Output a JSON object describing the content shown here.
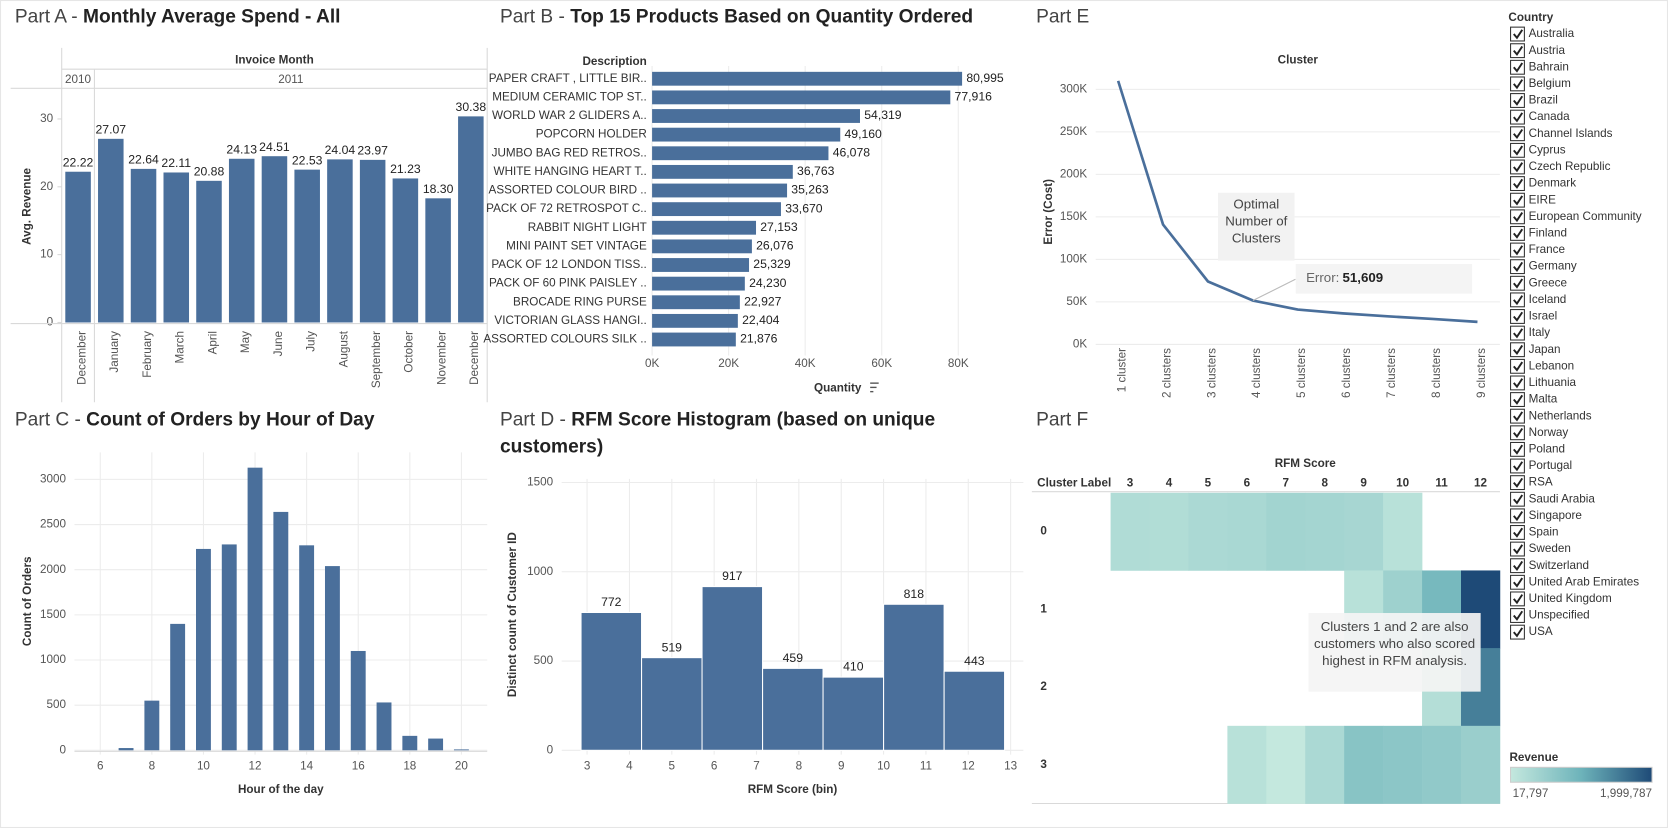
{
  "chart_data": [
    {
      "type": "bar",
      "title_prefix": "Part A -",
      "title": "Monthly Average Spend - All",
      "x_header": "Invoice Month",
      "x_groups": [
        {
          "label": "2010",
          "span": 1
        },
        {
          "label": "2011",
          "span": 12
        }
      ],
      "categories": [
        "December",
        "January",
        "February",
        "March",
        "April",
        "May",
        "June",
        "July",
        "August",
        "September",
        "October",
        "November",
        "December"
      ],
      "values": [
        22.22,
        27.07,
        22.64,
        22.11,
        20.88,
        24.13,
        24.51,
        22.53,
        24.04,
        23.97,
        21.23,
        18.3,
        30.38
      ],
      "value_labels": [
        "22.22",
        "27.07",
        "22.64",
        "22.11",
        "20.88",
        "24.13",
        "24.51",
        "22.53",
        "24.04",
        "23.97",
        "21.23",
        "18.30",
        "30.38"
      ],
      "color": "#4a6f9b",
      "y_label": "Avg. Revenue",
      "ylim": [
        0,
        34.2
      ],
      "yticks": [
        0,
        10,
        20,
        30
      ],
      "grid": false
    },
    {
      "type": "bar",
      "horizontal": true,
      "title_prefix": "Part B -",
      "title": "Top 15 Products Based on Quantity Ordered",
      "y_header": "Description",
      "categories": [
        "PAPER CRAFT , LITTLE BIR..",
        "MEDIUM CERAMIC TOP ST..",
        "WORLD WAR 2 GLIDERS A..",
        "POPCORN HOLDER",
        "JUMBO BAG RED RETROS..",
        "WHITE HANGING HEART T..",
        "ASSORTED COLOUR BIRD ..",
        "PACK OF 72 RETROSPOT C..",
        "RABBIT NIGHT LIGHT",
        "MINI PAINT SET VINTAGE",
        "PACK OF 12 LONDON TISS..",
        "PACK OF 60 PINK PAISLEY ..",
        "BROCADE RING PURSE",
        "VICTORIAN GLASS HANGI..",
        "ASSORTED COLOURS SILK .."
      ],
      "values": [
        80995,
        77916,
        54319,
        49160,
        46078,
        36763,
        35263,
        33670,
        27153,
        26076,
        25329,
        24230,
        22927,
        22404,
        21876
      ],
      "value_labels": [
        "80,995",
        "77,916",
        "54,319",
        "49,160",
        "46,078",
        "36,763",
        "35,263",
        "33,670",
        "27,153",
        "26,076",
        "25,329",
        "24,230",
        "22,927",
        "22,404",
        "21,876"
      ],
      "color": "#4a6f9b",
      "x_label": "Quantity",
      "xlim": [
        0,
        97000
      ],
      "xticks": [
        {
          "value": 0,
          "label": "0K"
        },
        {
          "value": 20000,
          "label": "20K"
        },
        {
          "value": 40000,
          "label": "40K"
        },
        {
          "value": 60000,
          "label": "60K"
        },
        {
          "value": 80000,
          "label": "80K"
        }
      ],
      "grid": true
    },
    {
      "type": "bar",
      "title_prefix": "Part C -",
      "title": "Count of Orders by Hour of Day",
      "x": [
        7,
        8,
        9,
        10,
        11,
        12,
        13,
        14,
        15,
        16,
        17,
        18,
        19,
        20
      ],
      "values": [
        25,
        550,
        1400,
        2230,
        2280,
        3130,
        2640,
        2270,
        2040,
        1100,
        530,
        160,
        130,
        10
      ],
      "color": "#4a6f9b",
      "x_label": "Hour of the day",
      "y_label": "Count of Orders",
      "xlim": [
        5,
        21
      ],
      "xticks": [
        6,
        8,
        10,
        12,
        14,
        16,
        18,
        20
      ],
      "ylim": [
        0,
        3300
      ],
      "yticks": [
        0,
        500,
        1000,
        1500,
        2000,
        2500,
        3000
      ],
      "grid": true
    },
    {
      "type": "histogram",
      "title_prefix": "Part D -",
      "title": "RFM Score Histogram (based on unique customers)",
      "bins": [
        2.857,
        4.286,
        5.714,
        7.143,
        8.571,
        10,
        11.429,
        12.857
      ],
      "values": [
        772,
        519,
        917,
        459,
        410,
        818,
        443
      ],
      "color": "#4a6f9b",
      "x_label": "RFM Score (bin)",
      "y_label": "Distinct count of Customer ID",
      "xlim": [
        2.4,
        13.3
      ],
      "xticks": [
        3,
        4,
        5,
        6,
        7,
        8,
        9,
        10,
        11,
        12,
        13
      ],
      "ylim": [
        0,
        1520
      ],
      "yticks": [
        0,
        500,
        1000,
        1500
      ],
      "grid": true
    },
    {
      "type": "line",
      "title_prefix": "Part E",
      "x_header": "Cluster",
      "categories": [
        "1 cluster",
        "2 clusters",
        "3 clusters",
        "4 clusters",
        "5 clusters",
        "6 clusters",
        "7 clusters",
        "8 clusters",
        "9 clusters"
      ],
      "values": [
        310000,
        141000,
        74000,
        51609,
        41000,
        36500,
        33000,
        30000,
        26500
      ],
      "value_labels": [
        null,
        null,
        null,
        "51,609",
        null,
        null,
        null,
        null,
        null
      ],
      "tooltip_label": "Error:",
      "annotation": "Optimal Number of Clusters",
      "color": "#4a6f9b",
      "y_label": "Error (Cost)",
      "ylim": [
        -8000,
        320000
      ],
      "yticks": [
        {
          "value": 0,
          "label": "0K"
        },
        {
          "value": 50000,
          "label": "50K"
        },
        {
          "value": 100000,
          "label": "100K"
        },
        {
          "value": 150000,
          "label": "150K"
        },
        {
          "value": 200000,
          "label": "200K"
        },
        {
          "value": 250000,
          "label": "250K"
        },
        {
          "value": 300000,
          "label": "300K"
        }
      ],
      "grid": true
    },
    {
      "type": "heatmap",
      "title_prefix": "Part F",
      "x_header": "RFM Score",
      "y_header": "Cluster Label",
      "columns": [
        3,
        4,
        5,
        6,
        7,
        8,
        9,
        10,
        11,
        12
      ],
      "rows": [
        0,
        1,
        2,
        3
      ],
      "values": [
        [
          250000,
          230000,
          300000,
          320000,
          400000,
          380000,
          350000,
          150000,
          null,
          null
        ],
        [
          null,
          null,
          null,
          null,
          null,
          null,
          150000,
          450000,
          900000,
          1999787
        ],
        [
          null,
          null,
          null,
          null,
          null,
          null,
          null,
          null,
          200000,
          1500000
        ],
        [
          null,
          null,
          null,
          150000,
          17797,
          300000,
          700000,
          650000,
          600000,
          500000
        ]
      ],
      "annotation": "Clusters 1 and 2 are also customers who also scored highest in RFM analysis.",
      "color_scale": [
        "#c4e8de",
        "#6db3ba",
        "#1e4a77"
      ],
      "legend": {
        "title": "Revenue",
        "ticks": [
          {
            "value": 17797,
            "label": "17,797"
          },
          {
            "value": 1999787,
            "label": "1,999,787"
          }
        ]
      }
    }
  ],
  "country_filter": {
    "title": "Country",
    "checked": true,
    "items": [
      "Australia",
      "Austria",
      "Bahrain",
      "Belgium",
      "Brazil",
      "Canada",
      "Channel Islands",
      "Cyprus",
      "Czech Republic",
      "Denmark",
      "EIRE",
      "European Community",
      "Finland",
      "France",
      "Germany",
      "Greece",
      "Iceland",
      "Israel",
      "Italy",
      "Japan",
      "Lebanon",
      "Lithuania",
      "Malta",
      "Netherlands",
      "Norway",
      "Poland",
      "Portugal",
      "RSA",
      "Saudi Arabia",
      "Singapore",
      "Spain",
      "Sweden",
      "Switzerland",
      "United Arab Emirates",
      "United Kingdom",
      "Unspecified",
      "USA"
    ]
  }
}
